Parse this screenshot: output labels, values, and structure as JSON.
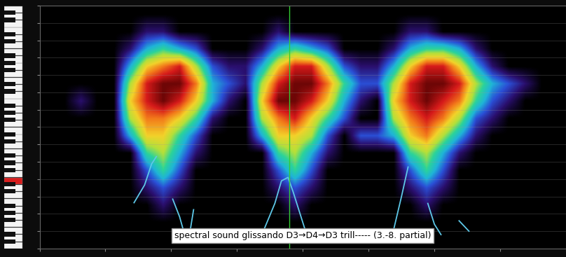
{
  "chart_data": {
    "type": "heatmap",
    "annotation": "spectral sound glissando D3→D4→D3 trill----- (3.-8. partial)",
    "xlim": [
      0,
      32
    ],
    "ylim": [
      0,
      14
    ],
    "xticks": [
      0,
      4,
      8,
      12,
      16,
      20,
      24,
      28,
      32
    ],
    "yticks": [
      0,
      1,
      2,
      3,
      4,
      5,
      6,
      7,
      8,
      9,
      10,
      11,
      12,
      13,
      14
    ],
    "grid": true,
    "tick_labels": false,
    "cells": [
      [
        0,
        0,
        0,
        0,
        0,
        0,
        0,
        0,
        0,
        0,
        0,
        0,
        0,
        0,
        0,
        0,
        0,
        0,
        0,
        0,
        0,
        0,
        0,
        0,
        0,
        0,
        0,
        0,
        0,
        0,
        0,
        0
      ],
      [
        0,
        0,
        0,
        0,
        0,
        0,
        1,
        1,
        0,
        0,
        0,
        0,
        0,
        0,
        1,
        0,
        0,
        0,
        0,
        0,
        0,
        0,
        1,
        1,
        0,
        0,
        0,
        0,
        0,
        0,
        0,
        0
      ],
      [
        0,
        0,
        0,
        0,
        0,
        1,
        3,
        4,
        3,
        2,
        0,
        0,
        0,
        1,
        3,
        4,
        3,
        2,
        0,
        0,
        0,
        1,
        3,
        4,
        4,
        3,
        1,
        0,
        0,
        0,
        0,
        0
      ],
      [
        0,
        0,
        0,
        0,
        0,
        3,
        6,
        7,
        8,
        5,
        2,
        1,
        1,
        3,
        6,
        8,
        8,
        5,
        2,
        1,
        1,
        3,
        6,
        8,
        8,
        6,
        3,
        1,
        0,
        0,
        0,
        0
      ],
      [
        0,
        0,
        0,
        0,
        0,
        5,
        8,
        9,
        9,
        7,
        3,
        2,
        1,
        5,
        8,
        9,
        9,
        7,
        4,
        2,
        2,
        5,
        8,
        9,
        9,
        8,
        5,
        3,
        2,
        1,
        0,
        0
      ],
      [
        0,
        0,
        1,
        0,
        0,
        6,
        8,
        9,
        8,
        6,
        3,
        1,
        0,
        6,
        9,
        9,
        8,
        6,
        3,
        1,
        0,
        6,
        8,
        9,
        8,
        7,
        4,
        2,
        1,
        0,
        0,
        0
      ],
      [
        0,
        0,
        0,
        0,
        0,
        5,
        7,
        7,
        6,
        4,
        1,
        0,
        0,
        5,
        7,
        8,
        6,
        4,
        2,
        0,
        0,
        5,
        7,
        8,
        7,
        5,
        2,
        1,
        0,
        0,
        0,
        0
      ],
      [
        0,
        0,
        0,
        0,
        0,
        3,
        6,
        6,
        4,
        2,
        0,
        0,
        0,
        3,
        6,
        6,
        5,
        2,
        0,
        2,
        2,
        3,
        6,
        7,
        5,
        3,
        1,
        0,
        0,
        0,
        0,
        0
      ],
      [
        0,
        0,
        0,
        0,
        0,
        0,
        4,
        5,
        3,
        1,
        0,
        0,
        0,
        0,
        4,
        5,
        3,
        1,
        0,
        0,
        0,
        0,
        4,
        5,
        3,
        1,
        0,
        0,
        0,
        0,
        0,
        0
      ],
      [
        0,
        0,
        0,
        0,
        0,
        0,
        2,
        4,
        2,
        0,
        0,
        0,
        0,
        0,
        2,
        4,
        2,
        0,
        0,
        0,
        0,
        0,
        2,
        4,
        2,
        0,
        0,
        0,
        0,
        0,
        0,
        0
      ],
      [
        0,
        0,
        0,
        0,
        0,
        0,
        1,
        2,
        1,
        0,
        0,
        0,
        0,
        0,
        1,
        2,
        1,
        0,
        0,
        0,
        0,
        0,
        1,
        2,
        1,
        0,
        0,
        0,
        0,
        0,
        0,
        0
      ],
      [
        0,
        0,
        0,
        0,
        0,
        0,
        0,
        1,
        0,
        0,
        0,
        0,
        0,
        0,
        0,
        1,
        0,
        0,
        0,
        0,
        0,
        0,
        0,
        1,
        0,
        0,
        0,
        0,
        0,
        0,
        0,
        0
      ],
      [
        0,
        0,
        0,
        0,
        0,
        0,
        0,
        0,
        0,
        0,
        0,
        0,
        0,
        0,
        0,
        0,
        0,
        0,
        0,
        0,
        0,
        0,
        0,
        0,
        0,
        0,
        0,
        0,
        0,
        0,
        0,
        0
      ],
      [
        0,
        0,
        0,
        0,
        0,
        0,
        0,
        0,
        0,
        0,
        0,
        0,
        0,
        0,
        0,
        0,
        0,
        0,
        0,
        0,
        0,
        0,
        0,
        0,
        0,
        0,
        0,
        0,
        0,
        0,
        0,
        0
      ]
    ],
    "trace": {
      "color": "#5ec8e8",
      "x": [
        5.74,
        6.38,
        6.81,
        7.1,
        null,
        8.09,
        8.51,
        8.81,
        9.15,
        9.36,
        null,
        13.6,
        14.3,
        14.7,
        15.1,
        15.4,
        15.9,
        16.3,
        null,
        21.5,
        22.0,
        22.4,
        null,
        23.6,
        24.0,
        24.4,
        null,
        25.5,
        26.1
      ],
      "y": [
        2.64,
        3.66,
        4.88,
        5.3,
        null,
        2.85,
        1.83,
        0.81,
        1.02,
        2.24,
        null,
        1.0,
        2.6,
        3.9,
        4.1,
        3.3,
        1.8,
        0.6,
        null,
        1.0,
        3.0,
        4.7,
        null,
        2.6,
        1.4,
        0.8,
        null,
        1.6,
        1.0
      ]
    },
    "cursor": {
      "x": 15.2,
      "color": "#33cc33"
    }
  }
}
